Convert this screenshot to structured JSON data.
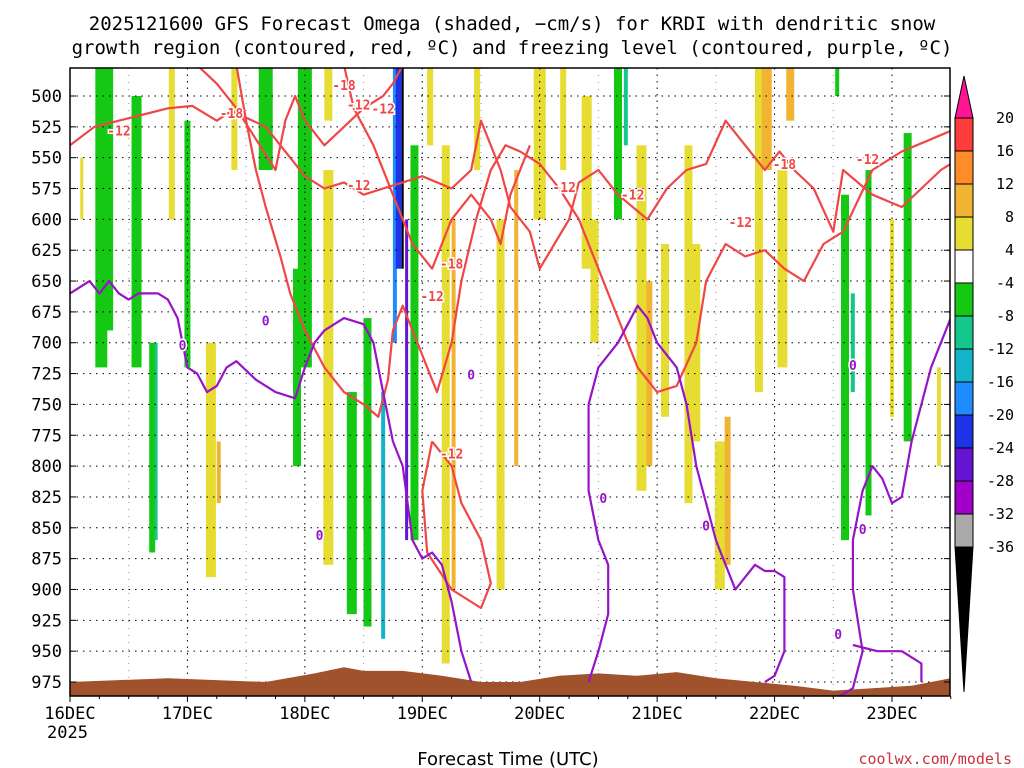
{
  "chart_data": {
    "type": "time-height",
    "title": "2025121600 GFS Forecast Omega (shaded, −cm/s) for KRDI with dendritic snow",
    "subtitle": "growth region (contoured, red, ºC) and freezing level (contoured, purple, ºC)",
    "xlabel": "Forecast Time (UTC)",
    "ylabel": "",
    "credit": "coolwx.com/models",
    "x_ticks": [
      "16DEC",
      "17DEC",
      "18DEC",
      "19DEC",
      "20DEC",
      "21DEC",
      "22DEC",
      "23DEC"
    ],
    "x_year": "2025",
    "xlim_hours": [
      0,
      186
    ],
    "y_ticks": [
      500,
      525,
      550,
      575,
      600,
      625,
      650,
      675,
      700,
      725,
      750,
      775,
      800,
      825,
      850,
      875,
      900,
      925,
      950,
      975
    ],
    "ylim_hpa": [
      475,
      990
    ],
    "colorbar": {
      "labels": [
        "20",
        "16",
        "12",
        "8",
        "4",
        "-4",
        "-8",
        "-12",
        "-16",
        "-20",
        "-24",
        "-28",
        "-32",
        "-36"
      ],
      "colors": [
        "#ff1493",
        "#ff3c3c",
        "#ff8c28",
        "#f0b432",
        "#e6dc32",
        "#ffffff",
        "#14c814",
        "#14c88c",
        "#14b4c8",
        "#1e8cff",
        "#1e32e6",
        "#6414d2",
        "#a000c8",
        "#aaaaaa",
        "#000000"
      ]
    },
    "contours": {
      "dgz_label_minus12": "-12",
      "dgz_label_minus18": "-18",
      "freezing_label": "0",
      "dgz_color": "#f04646",
      "freezing_color": "#9614c8",
      "terrain_color": "#a0522d",
      "dgz_minus12_series": [
        {
          "name": "upper",
          "points": [
            [
              0,
              540
            ],
            [
              5,
              525
            ],
            [
              10,
              520
            ],
            [
              15,
              515
            ],
            [
              20,
              510
            ],
            [
              25,
              508
            ],
            [
              30,
              520
            ],
            [
              33,
              512
            ],
            [
              40,
              525
            ],
            [
              45,
              550
            ],
            [
              48,
              565
            ],
            [
              52,
              575
            ],
            [
              56,
              570
            ],
            [
              60,
              580
            ],
            [
              64,
              575
            ],
            [
              68,
              570
            ],
            [
              72,
              565
            ],
            [
              78,
              575
            ],
            [
              82,
              560
            ],
            [
              84,
              520
            ],
            [
              88,
              560
            ],
            [
              90,
              590
            ],
            [
              94,
              610
            ],
            [
              96,
              640
            ],
            [
              99,
              620
            ],
            [
              102,
              600
            ],
            [
              104,
              570
            ],
            [
              108,
              560
            ],
            [
              112,
              580
            ],
            [
              118,
              600
            ],
            [
              122,
              575
            ],
            [
              126,
              560
            ],
            [
              130,
              555
            ],
            [
              134,
              520
            ],
            [
              138,
              540
            ],
            [
              142,
              560
            ],
            [
              145,
              545
            ],
            [
              148,
              560
            ],
            [
              152,
              575
            ],
            [
              156,
              610
            ],
            [
              158,
              560
            ],
            [
              164,
              580
            ],
            [
              170,
              590
            ],
            [
              174,
              575
            ],
            [
              178,
              560
            ],
            [
              180,
              555
            ],
            [
              186,
              540
            ]
          ]
        },
        {
          "name": "lower",
          "points": [
            [
              34,
              475
            ],
            [
              36,
              520
            ],
            [
              38,
              560
            ],
            [
              40,
              590
            ],
            [
              43,
              630
            ],
            [
              45,
              660
            ],
            [
              48,
              690
            ],
            [
              52,
              720
            ],
            [
              56,
              740
            ],
            [
              60,
              750
            ],
            [
              63,
              760
            ],
            [
              65,
              730
            ],
            [
              66,
              690
            ],
            [
              68,
              670
            ],
            [
              70,
              690
            ],
            [
              72,
              710
            ],
            [
              75,
              740
            ],
            [
              78,
              700
            ],
            [
              80,
              650
            ],
            [
              83,
              600
            ],
            [
              86,
              560
            ],
            [
              89,
              540
            ],
            [
              92,
              545
            ],
            [
              96,
              555
            ],
            [
              100,
              575
            ],
            [
              104,
              600
            ],
            [
              108,
              640
            ],
            [
              112,
              680
            ],
            [
              116,
              720
            ],
            [
              120,
              740
            ],
            [
              124,
              735
            ],
            [
              128,
              700
            ],
            [
              130,
              650
            ],
            [
              134,
              620
            ],
            [
              138,
              630
            ],
            [
              142,
              625
            ],
            [
              146,
              640
            ],
            [
              150,
              650
            ],
            [
              154,
              620
            ],
            [
              158,
              610
            ],
            [
              164,
              560
            ],
            [
              170,
              545
            ],
            [
              176,
              535
            ],
            [
              182,
              525
            ],
            [
              186,
              520
            ]
          ]
        },
        {
          "name": "loop-19dec",
          "points": [
            [
              74,
              780
            ],
            [
              72,
              820
            ],
            [
              73,
              870
            ],
            [
              78,
              900
            ],
            [
              84,
              915
            ],
            [
              86,
              895
            ],
            [
              84,
              860
            ],
            [
              80,
              830
            ],
            [
              78,
              800
            ],
            [
              74,
              780
            ]
          ]
        }
      ],
      "dgz_minus18_series": [
        {
          "name": "upper-18",
          "points": [
            [
              26,
              475
            ],
            [
              30,
              490
            ],
            [
              34,
              510
            ],
            [
              38,
              535
            ],
            [
              42,
              560
            ],
            [
              44,
              520
            ],
            [
              46,
              500
            ],
            [
              48,
              520
            ],
            [
              52,
              540
            ],
            [
              56,
              525
            ],
            [
              60,
              510
            ],
            [
              64,
              500
            ],
            [
              66,
              490
            ],
            [
              68,
              475
            ]
          ]
        },
        {
          "name": "mid-18",
          "points": [
            [
              56,
              475
            ],
            [
              58,
              510
            ],
            [
              62,
              540
            ],
            [
              66,
              580
            ],
            [
              70,
              620
            ],
            [
              74,
              640
            ],
            [
              78,
              600
            ],
            [
              82,
              580
            ],
            [
              86,
              600
            ],
            [
              88,
              620
            ],
            [
              90,
              580
            ],
            [
              92,
              560
            ],
            [
              94,
              540
            ]
          ]
        }
      ],
      "freezing_series": [
        {
          "name": "main",
          "points": [
            [
              0,
              660
            ],
            [
              4,
              650
            ],
            [
              6,
              660
            ],
            [
              8,
              650
            ],
            [
              10,
              660
            ],
            [
              12,
              665
            ],
            [
              14,
              660
            ],
            [
              18,
              660
            ],
            [
              20,
              665
            ],
            [
              22,
              680
            ],
            [
              24,
              720
            ],
            [
              26,
              725
            ],
            [
              28,
              740
            ],
            [
              30,
              735
            ],
            [
              32,
              720
            ],
            [
              34,
              715
            ],
            [
              38,
              730
            ],
            [
              42,
              740
            ],
            [
              46,
              745
            ],
            [
              48,
              720
            ],
            [
              50,
              700
            ],
            [
              52,
              690
            ],
            [
              56,
              680
            ],
            [
              60,
              685
            ],
            [
              62,
              700
            ],
            [
              64,
              740
            ],
            [
              66,
              780
            ],
            [
              68,
              800
            ],
            [
              70,
              860
            ],
            [
              72,
              875
            ],
            [
              74,
              870
            ],
            [
              76,
              880
            ],
            [
              78,
              910
            ],
            [
              80,
              950
            ],
            [
              82,
              975
            ]
          ]
        },
        {
          "name": "20dec",
          "points": [
            [
              106,
              975
            ],
            [
              108,
              950
            ],
            [
              110,
              920
            ],
            [
              110,
              880
            ],
            [
              108,
              860
            ],
            [
              106,
              820
            ],
            [
              106,
              780
            ],
            [
              106,
              750
            ],
            [
              108,
              720
            ],
            [
              112,
              700
            ],
            [
              116,
              670
            ],
            [
              118,
              680
            ],
            [
              120,
              700
            ],
            [
              122,
              710
            ],
            [
              124,
              720
            ],
            [
              126,
              750
            ],
            [
              128,
              800
            ],
            [
              130,
              830
            ],
            [
              132,
              860
            ],
            [
              134,
              880
            ],
            [
              136,
              900
            ],
            [
              138,
              890
            ],
            [
              140,
              880
            ],
            [
              142,
              885
            ],
            [
              144,
              885
            ],
            [
              146,
              890
            ],
            [
              146,
              920
            ],
            [
              146,
              950
            ],
            [
              144,
              970
            ],
            [
              142,
              975
            ]
          ]
        },
        {
          "name": "22dec",
          "points": [
            [
              155,
              990
            ],
            [
              158,
              985
            ],
            [
              160,
              980
            ],
            [
              162,
              950
            ],
            [
              160,
              900
            ],
            [
              160,
              860
            ],
            [
              162,
              820
            ],
            [
              164,
              800
            ],
            [
              166,
              810
            ],
            [
              168,
              830
            ],
            [
              170,
              825
            ],
            [
              172,
              780
            ],
            [
              174,
              750
            ],
            [
              176,
              720
            ],
            [
              178,
              700
            ],
            [
              180,
              680
            ],
            [
              182,
              670
            ],
            [
              186,
              665
            ],
            [
              190,
              660
            ],
            [
              194,
              655
            ],
            [
              198,
              640
            ]
          ]
        },
        {
          "name": "22dec-bottom",
          "points": [
            [
              160,
              945
            ],
            [
              165,
              950
            ],
            [
              170,
              950
            ],
            [
              172,
              955
            ],
            [
              174,
              960
            ],
            [
              174,
              975
            ]
          ]
        }
      ]
    }
  }
}
